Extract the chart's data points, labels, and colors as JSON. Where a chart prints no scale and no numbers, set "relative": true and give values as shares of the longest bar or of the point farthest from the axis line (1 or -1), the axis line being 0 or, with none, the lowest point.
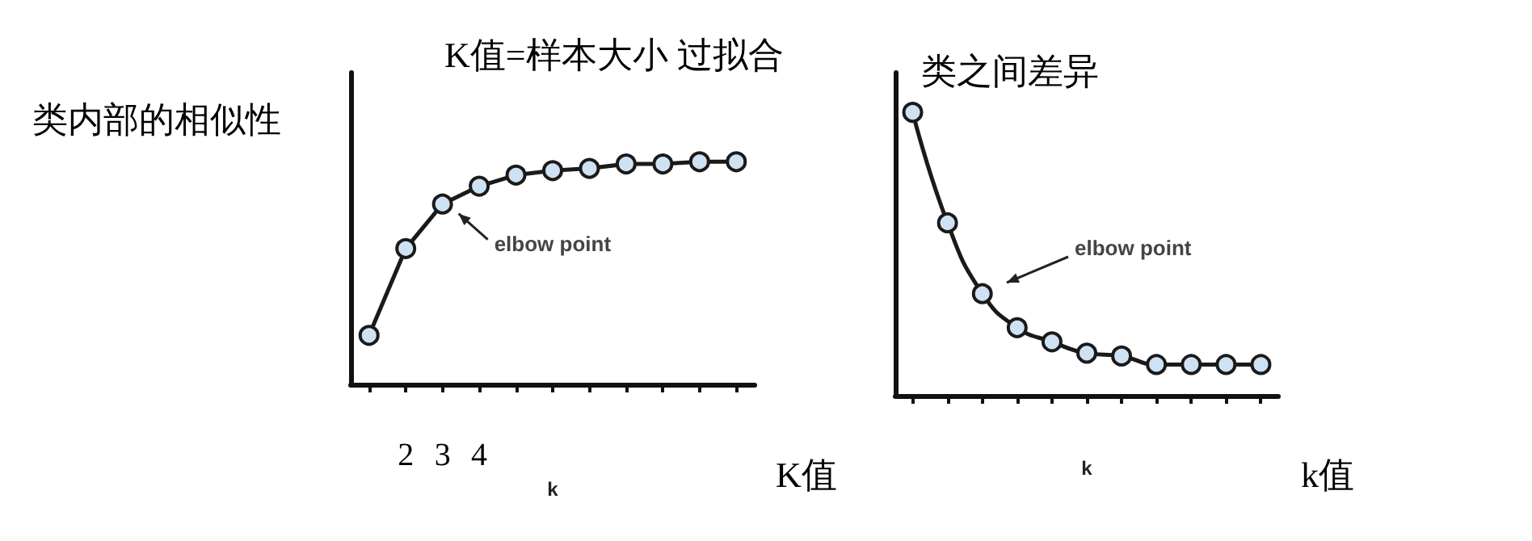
{
  "chart_data": [
    {
      "type": "line",
      "title": "K值=样本大小 过拟合",
      "ylabel": "类内部的相似性",
      "xlabel": "k",
      "relative": true,
      "marker": "circle",
      "line_style": "solid",
      "grid": false,
      "categories": [
        null,
        "2",
        "3",
        "4",
        null,
        null,
        null,
        null,
        null,
        null,
        null
      ],
      "series": [
        {
          "color": "#1a1a1a",
          "values": [
            0.22,
            0.61,
            0.81,
            0.89,
            0.94,
            0.96,
            0.97,
            0.99,
            0.99,
            1,
            1
          ]
        }
      ],
      "annotations": [
        {
          "text": "elbow point",
          "x": "3",
          "y": 0.81
        },
        "K值"
      ]
    },
    {
      "type": "line",
      "ylabel": "类之间差异",
      "xlabel": "k",
      "relative": true,
      "marker": "circle",
      "line_style": "solid",
      "grid": false,
      "categories": [
        null,
        null,
        null,
        null,
        null,
        null,
        null,
        null,
        null,
        null,
        null
      ],
      "series": [
        {
          "color": "#1a1a1a",
          "values": [
            1,
            0.61,
            0.36,
            0.24,
            0.19,
            0.15,
            0.14,
            0.11,
            0.11,
            0.11,
            0.11
          ]
        }
      ],
      "annotations": [
        "elbow point",
        "k值"
      ]
    }
  ]
}
